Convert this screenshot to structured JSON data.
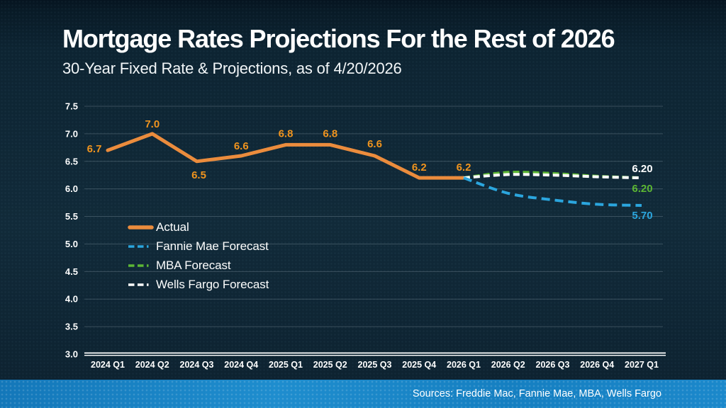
{
  "slide": {
    "title": "Mortgage Rates Projections For the Rest of 2026",
    "subtitle": "30-Year Fixed Rate & Projections, as of 4/20/2026",
    "footer_sources": "Sources: Freddie Mac, Fannie Mae, MBA, Wells Fargo",
    "colors": {
      "background_navy": "#0E2533",
      "footer_blue": "#1580C4",
      "actual_orange": "#EB8C3D",
      "data_label_orange": "#F0941E",
      "fannie_mae_blue": "#2BA6DE",
      "mba_green": "#5CB734",
      "wells_fargo_white": "#FFFFFF",
      "gridline_gray": "#93A5B1",
      "axis_white": "#FFFFFF"
    }
  },
  "chart_data": {
    "type": "line",
    "title": "Mortgage Rates Projections For the Rest of 2026",
    "subtitle": "30-Year Fixed Rate & Projections, as of 4/20/2026",
    "xlabel": "",
    "ylabel": "",
    "ylim": [
      3.0,
      7.5
    ],
    "ytick_step": 0.5,
    "grid": true,
    "legend_position": "inside-left",
    "draw_order": [
      0,
      2,
      3,
      1
    ],
    "categories": [
      "2024 Q1",
      "2024 Q2",
      "2024 Q3",
      "2024 Q4",
      "2025 Q1",
      "2025 Q2",
      "2025 Q3",
      "2025 Q4",
      "2026 Q1",
      "2026 Q2",
      "2026 Q3",
      "2026 Q4",
      "2027 Q1"
    ],
    "series": [
      {
        "name": "Actual",
        "color": "#EB8C3D",
        "label_color": "#F0941E",
        "style": "solid",
        "width": 5,
        "smooth": false,
        "values": [
          6.7,
          7.0,
          6.5,
          6.6,
          6.8,
          6.8,
          6.6,
          6.2,
          6.2,
          null,
          null,
          null,
          null
        ],
        "point_labels": [
          {
            "text": "6.7",
            "dx": -19,
            "dy": 3
          },
          {
            "text": "7.0",
            "dx": 0,
            "dy": -9
          },
          {
            "text": "6.5",
            "dx": 3,
            "dy": 24
          },
          {
            "text": "6.6",
            "dx": 0,
            "dy": -9
          },
          {
            "text": "6.8",
            "dx": 0,
            "dy": -11
          },
          {
            "text": "6.8",
            "dx": 0,
            "dy": -11
          },
          {
            "text": "6.6",
            "dx": 0,
            "dy": -12
          },
          {
            "text": "6.2",
            "dx": 0,
            "dy": -10
          },
          {
            "text": "6.2",
            "dx": 0,
            "dy": -10
          }
        ]
      },
      {
        "name": "Fannie Mae Forecast",
        "color": "#2BA6DE",
        "style": "dashed",
        "dash": "12 7",
        "width": 4,
        "smooth": true,
        "values": [
          null,
          null,
          null,
          null,
          null,
          null,
          null,
          null,
          6.2,
          5.92,
          5.8,
          5.72,
          5.7
        ],
        "end_label": {
          "text": "5.70",
          "dx": 1,
          "dy": 19
        }
      },
      {
        "name": "MBA Forecast",
        "color": "#5CB734",
        "style": "dashed",
        "dash": "9 5",
        "width": 4,
        "smooth": true,
        "values": [
          null,
          null,
          null,
          null,
          null,
          null,
          null,
          null,
          6.2,
          6.3,
          6.28,
          6.23,
          6.2
        ],
        "end_label": {
          "text": "6.20",
          "dx": 1,
          "dy": 20
        }
      },
      {
        "name": "Wells Fargo Forecast",
        "color": "#FFFFFF",
        "style": "dashed",
        "dash": "9 5",
        "width": 4,
        "smooth": true,
        "values": [
          null,
          null,
          null,
          null,
          null,
          null,
          null,
          null,
          6.2,
          6.26,
          6.25,
          6.22,
          6.2
        ],
        "end_label": {
          "text": "6.20",
          "dx": 1,
          "dy": -8
        }
      }
    ]
  }
}
